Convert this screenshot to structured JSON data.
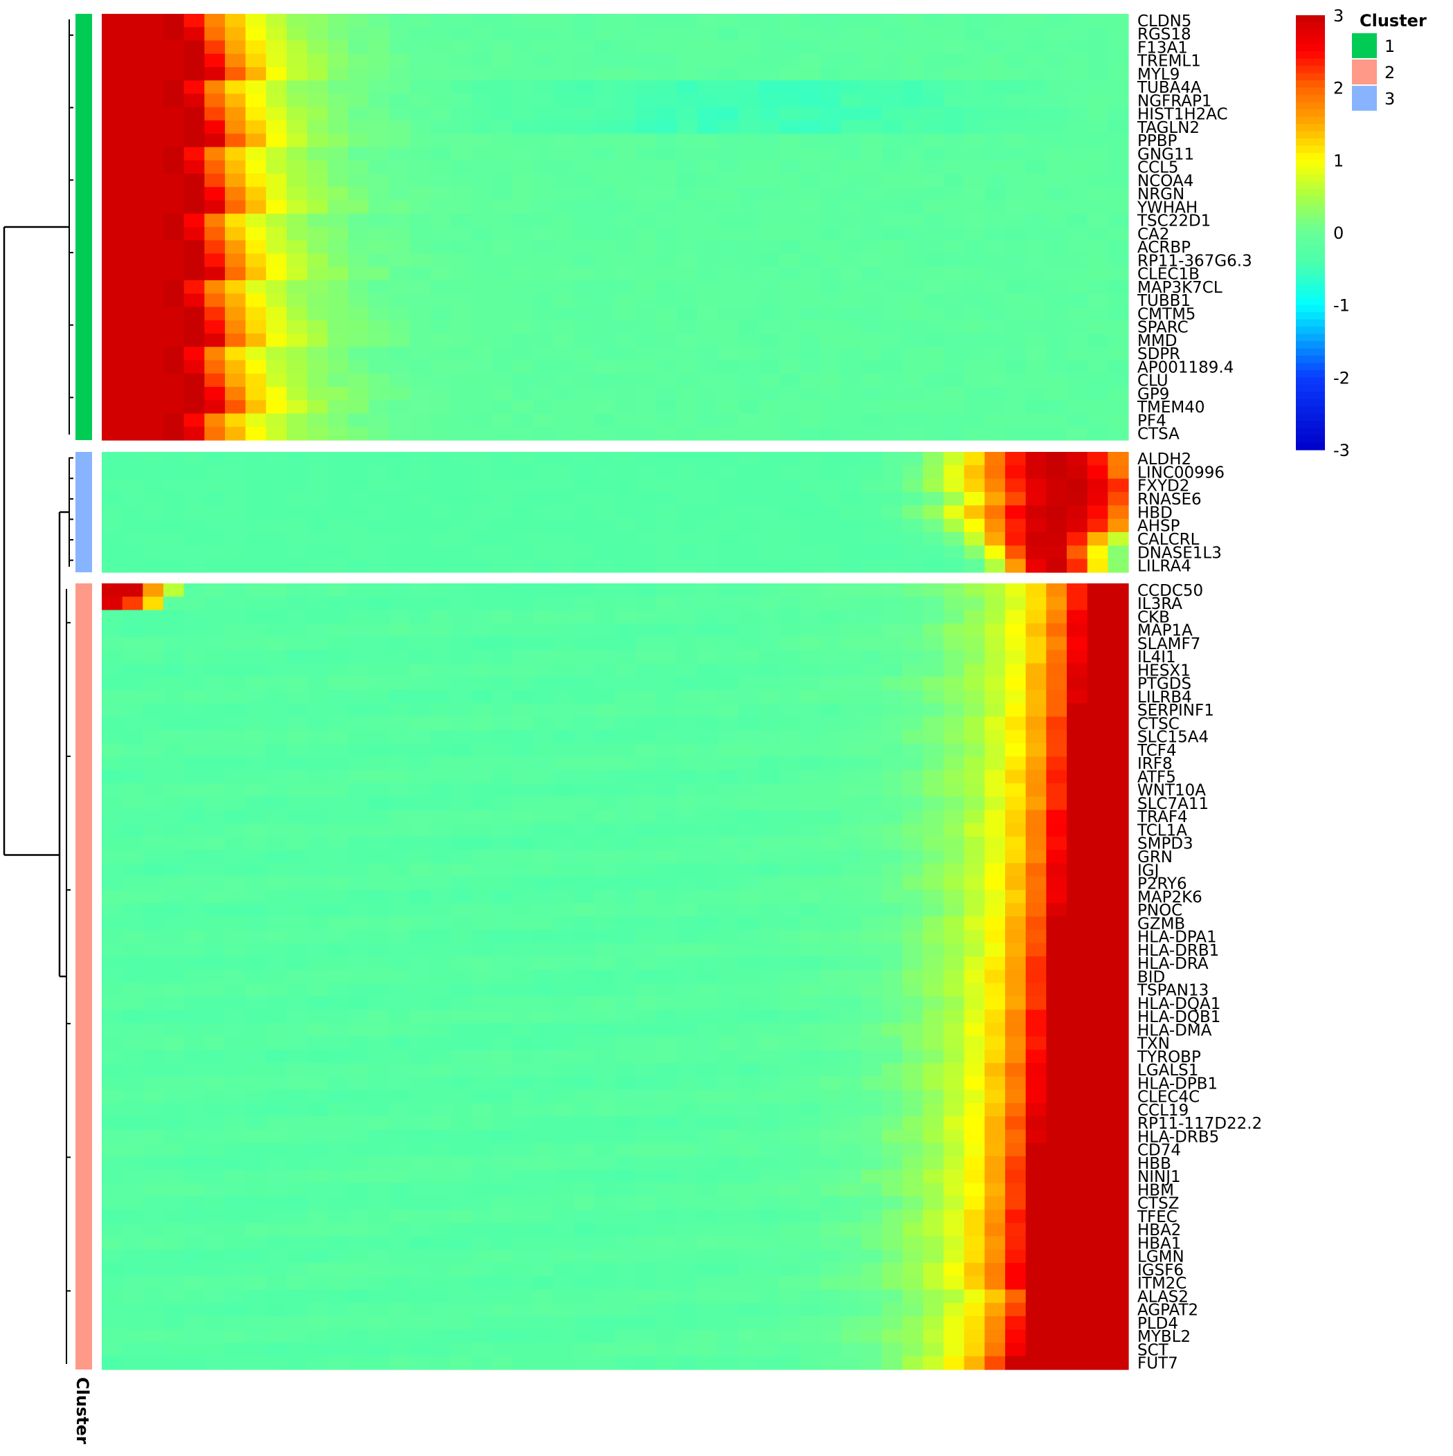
{
  "chart_data": {
    "type": "heatmap",
    "n_columns": 50,
    "color_scale": {
      "min": -3,
      "max": 3,
      "ticks": [
        "3",
        "2",
        "1",
        "0",
        "-1",
        "-2",
        "-3"
      ],
      "stops": [
        {
          "value": -3,
          "color": "#0000c8"
        },
        {
          "value": -2,
          "color": "#0a3cff"
        },
        {
          "value": -1,
          "color": "#00ffff"
        },
        {
          "value": -0.4,
          "color": "#4dffaa"
        },
        {
          "value": 0,
          "color": "#66ff99"
        },
        {
          "value": 0.5,
          "color": "#aaff44"
        },
        {
          "value": 1,
          "color": "#ffff00"
        },
        {
          "value": 1.5,
          "color": "#ffaa00"
        },
        {
          "value": 2,
          "color": "#ff6600"
        },
        {
          "value": 2.5,
          "color": "#ff0000"
        },
        {
          "value": 3,
          "color": "#c80000"
        }
      ]
    },
    "annotation": {
      "title": "Cluster",
      "axis_label": "Cluster",
      "colors": {
        "1": "#00cc55",
        "2": "#ff9988",
        "3": "#88b4ff"
      },
      "legend": [
        "1",
        "2",
        "3"
      ]
    },
    "row_clusters": [
      {
        "cluster": "1",
        "pattern": "early",
        "genes": [
          "CLDN5",
          "RGS18",
          "F13A1",
          "TREML1",
          "MYL9",
          "TUBA4A",
          "NGFRAP1",
          "HIST1H2AC",
          "TAGLN2",
          "PPBP",
          "GNG11",
          "CCL5",
          "NCOA4",
          "NRGN",
          "YWHAH",
          "TSC22D1",
          "CA2",
          "ACRBP",
          "RP11-367G6.3",
          "CLEC1B",
          "MAP3K7CL",
          "TUBB1",
          "CMTM5",
          "SPARC",
          "MMD",
          "SDPR",
          "AP001189.4",
          "CLU",
          "GP9",
          "TMEM40",
          "PF4",
          "CTSA"
        ]
      },
      {
        "cluster": "3",
        "pattern": "peak",
        "genes": [
          "ALDH2",
          "LINC00996",
          "FXYD2",
          "RNASE6",
          "HBD",
          "AHSP",
          "CALCRL",
          "DNASE1L3",
          "LILRA4"
        ]
      },
      {
        "cluster": "2",
        "pattern": "late",
        "genes": [
          "CCDC50",
          "IL3RA",
          "CKB",
          "MAP1A",
          "SLAMF7",
          "IL4I1",
          "HESX1",
          "PTGDS",
          "LILRB4",
          "SERPINF1",
          "CTSC",
          "SLC15A4",
          "TCF4",
          "IRF8",
          "ATF5",
          "WNT10A",
          "SLC7A11",
          "TRAF4",
          "TCL1A",
          "SMPD3",
          "GRN",
          "IGJ",
          "P2RY6",
          "MAP2K6",
          "PNOC",
          "GZMB",
          "HLA-DPA1",
          "HLA-DRB1",
          "HLA-DRA",
          "BID",
          "TSPAN13",
          "HLA-DQA1",
          "HLA-DQB1",
          "HLA-DMA",
          "TXN",
          "TYROBP",
          "LGALS1",
          "HLA-DPB1",
          "CLEC4C",
          "CCL19",
          "RP11-117D22.2",
          "HLA-DRB5",
          "CD74",
          "HBB",
          "NINJ1",
          "HBM",
          "CTSZ",
          "TFEC",
          "HBA2",
          "HBA1",
          "LGMN",
          "IGSF6",
          "ITM2C",
          "ALAS2",
          "AGPAT2",
          "PLD4",
          "MYBL2",
          "SCT",
          "FUT7"
        ]
      }
    ]
  }
}
